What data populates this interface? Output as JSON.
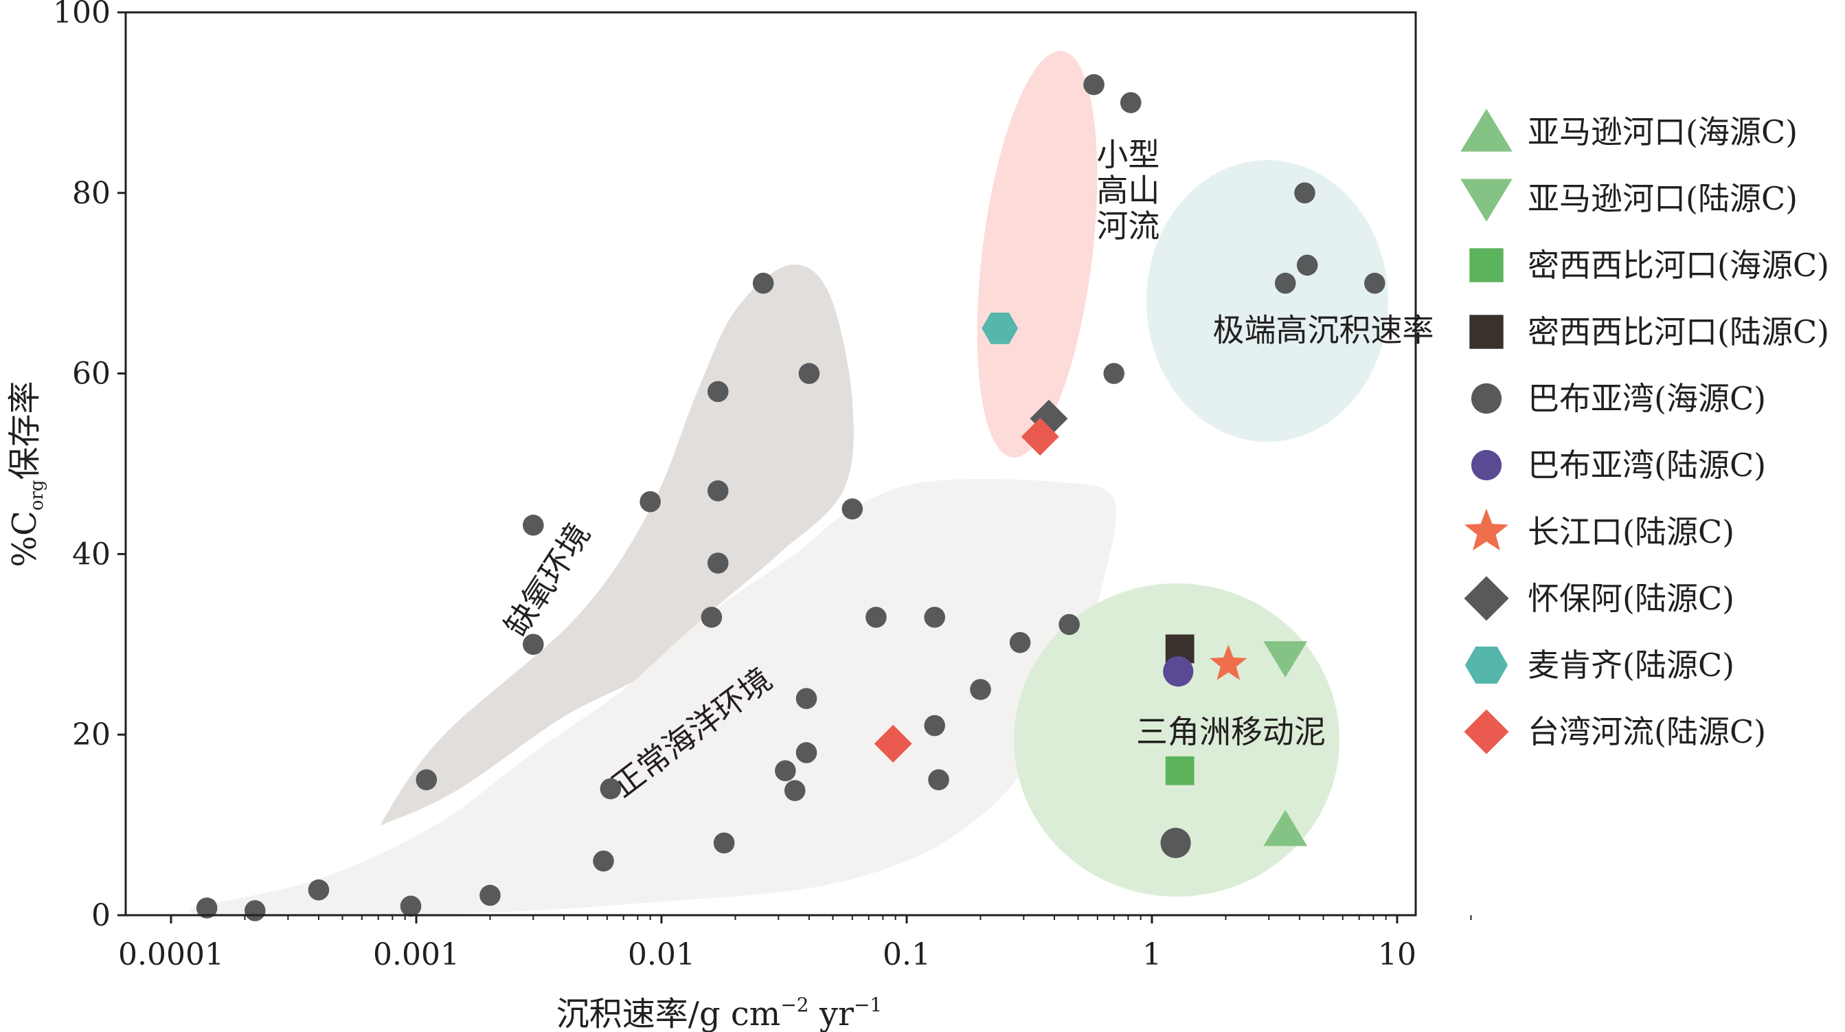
{
  "chart_data": {
    "type": "scatter",
    "x_scale": "log",
    "xlim": [
      0.0001,
      20
    ],
    "ylim": [
      0,
      100
    ],
    "x_ticks": [
      {
        "value": 0.0001,
        "label": "0.0001"
      },
      {
        "value": 0.001,
        "label": "0.001"
      },
      {
        "value": 0.01,
        "label": "0.01"
      },
      {
        "value": 0.1,
        "label": "0.1"
      },
      {
        "value": 1,
        "label": "1"
      },
      {
        "value": 10,
        "label": "10"
      }
    ],
    "y_ticks": [
      {
        "value": 0,
        "label": "0"
      },
      {
        "value": 20,
        "label": "20"
      },
      {
        "value": 40,
        "label": "40"
      },
      {
        "value": 60,
        "label": "60"
      },
      {
        "value": 80,
        "label": "80"
      },
      {
        "value": 100,
        "label": "100"
      }
    ],
    "xlabel": {
      "main": "沉积速率/g cm",
      "sup1": "−2",
      "mid": " yr",
      "sup2": "−1"
    },
    "ylabel": {
      "prefix": "%C",
      "sub": "org",
      "suffix": "保存率"
    },
    "grid": false,
    "legend_position": "right",
    "series": [
      {
        "name": "亚马逊河口(海源C)",
        "marker": "triangle-up",
        "color": "#84c384",
        "points": [
          [
            3.5,
            9.5
          ]
        ]
      },
      {
        "name": "亚马逊河口(陆源C)",
        "marker": "triangle-down",
        "color": "#84c384",
        "points": [
          [
            3.5,
            28.5
          ]
        ]
      },
      {
        "name": "密西西比河口(海源C)",
        "marker": "square",
        "color": "#5cb35c",
        "points": [
          [
            1.3,
            16
          ]
        ]
      },
      {
        "name": "密西西比河口(陆源C)",
        "marker": "square",
        "color": "#3a302c",
        "points": [
          [
            1.3,
            29.5
          ]
        ]
      },
      {
        "name": "巴布亚湾(海源C)",
        "marker": "circle",
        "color": "#58595b",
        "points": [
          [
            0.00014,
            0.8
          ],
          [
            0.00022,
            0.5
          ],
          [
            0.0004,
            2.8
          ],
          [
            0.00095,
            1.0
          ],
          [
            0.002,
            2.2
          ],
          [
            0.0058,
            6.0
          ],
          [
            0.0062,
            14.0
          ],
          [
            0.0011,
            15.0
          ],
          [
            0.003,
            30.0
          ],
          [
            0.003,
            43.2
          ],
          [
            0.009,
            45.8
          ],
          [
            0.017,
            58.0
          ],
          [
            0.026,
            70.0
          ],
          [
            0.04,
            60.0
          ],
          [
            0.017,
            47.0
          ],
          [
            0.017,
            39.0
          ],
          [
            0.016,
            33.0
          ],
          [
            0.018,
            8.0
          ],
          [
            0.032,
            16.0
          ],
          [
            0.035,
            13.8
          ],
          [
            0.039,
            18.0
          ],
          [
            0.039,
            24.0
          ],
          [
            0.06,
            45.0
          ],
          [
            0.075,
            33.0
          ],
          [
            0.13,
            33.0
          ],
          [
            0.13,
            21.0
          ],
          [
            0.135,
            15.0
          ],
          [
            0.2,
            25.0
          ],
          [
            0.29,
            30.2
          ],
          [
            0.46,
            32.2
          ],
          [
            0.58,
            92.0
          ],
          [
            0.82,
            90.0
          ],
          [
            0.7,
            60.0
          ],
          [
            1.25,
            8.0
          ],
          [
            3.5,
            70.0
          ],
          [
            4.3,
            72.0
          ],
          [
            4.2,
            80.0
          ],
          [
            8.1,
            70.0
          ]
        ]
      },
      {
        "name": "巴布亚湾(陆源C)",
        "marker": "circle",
        "color": "#5a4a94",
        "points": [
          [
            1.28,
            27.0
          ]
        ]
      },
      {
        "name": "长江口(陆源C)",
        "marker": "star",
        "color": "#ef6f4c",
        "points": [
          [
            2.05,
            27.8
          ]
        ]
      },
      {
        "name": "怀保阿(陆源C)",
        "marker": "diamond",
        "color": "#58595b",
        "points": [
          [
            0.38,
            55.0
          ]
        ]
      },
      {
        "name": "麦肯齐(陆源C)",
        "marker": "hexagon",
        "color": "#55b6ab",
        "points": [
          [
            0.24,
            65.0
          ]
        ]
      },
      {
        "name": "台湾河流(陆源C)",
        "marker": "diamond",
        "color": "#ea5a4f",
        "points": [
          [
            0.088,
            19.0
          ],
          [
            0.35,
            53.0
          ]
        ]
      }
    ],
    "regions": [
      {
        "label": "缺氧环境",
        "color": "#e1dedc",
        "rotate": -57,
        "label_at": [
          0.0035,
          37
        ]
      },
      {
        "label": "正常海洋环境",
        "color": "#f3f2f1",
        "rotate": -37,
        "label_at": [
          0.0135,
          20
        ]
      },
      {
        "label_lines": [
          "小型",
          "高山",
          "河流"
        ],
        "color": "#fcdbd9",
        "label_at": [
          0.8,
          80
        ]
      },
      {
        "label": "极端高沉积速率",
        "color": "#e4f1f0",
        "label_at": [
          5.0,
          64.5
        ]
      },
      {
        "label": "三角洲移动泥",
        "color": "#dcedd7",
        "label_at": [
          2.1,
          20
        ]
      }
    ]
  }
}
